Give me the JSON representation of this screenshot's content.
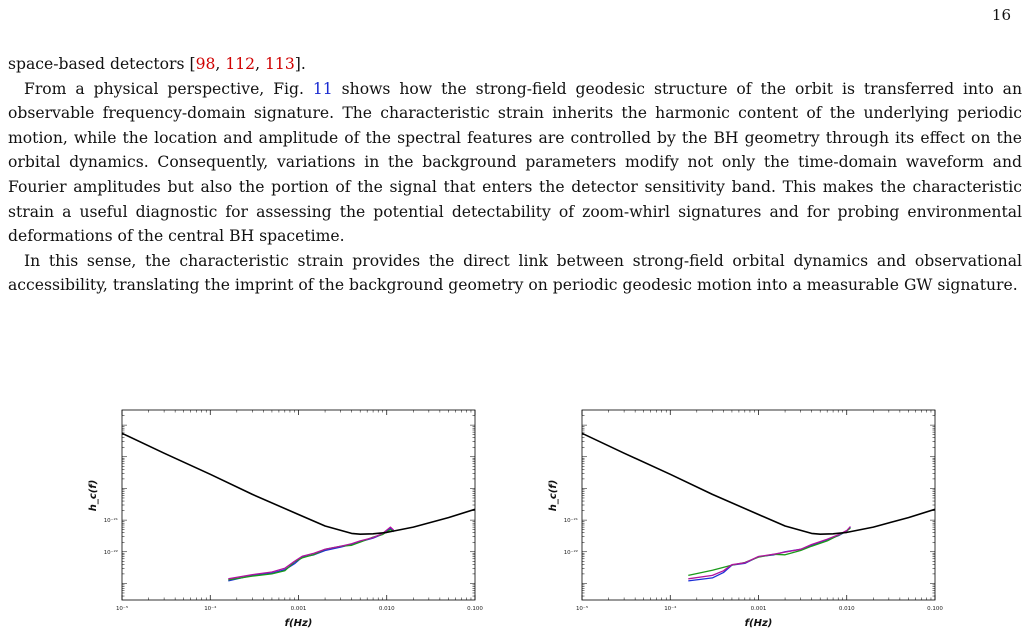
{
  "page_number": "16",
  "paragraphs": [
    {
      "segments": [
        {
          "t": "space-based detectors ["
        },
        {
          "t": "98",
          "kind": "ref"
        },
        {
          "t": ", "
        },
        {
          "t": "112",
          "kind": "ref"
        },
        {
          "t": ", "
        },
        {
          "t": "113",
          "kind": "ref"
        },
        {
          "t": "]."
        }
      ]
    },
    {
      "segments": [
        {
          "t": "From a physical perspective, Fig. "
        },
        {
          "t": "11",
          "kind": "figref"
        },
        {
          "t": " shows how the strong-field geodesic structure of the orbit is transferred into an observable frequency-domain signature. The characteristic strain inherits the harmonic content of the underlying periodic motion, while the location and amplitude of the spectral features are controlled by the BH geometry through its effect on the orbital dynamics. Consequently, variations in the background parameters modify not only the time-domain waveform and Fourier amplitudes but also the portion of the signal that enters the detector sensitivity band. This makes the characteristic strain a useful diagnostic for assessing the potential detectability of zoom-whirl signatures and for probing environmental deformations of the central BH spacetime."
        }
      ]
    },
    {
      "segments": [
        {
          "t": "In this sense, the characteristic strain provides the direct link between strong-field orbital dynamics and observational accessibility, translating the imprint of the background geometry on periodic geodesic motion into a measurable GW signature."
        }
      ]
    }
  ],
  "colors": {
    "ref": "#d00000",
    "figref": "#1a2bd0",
    "curve": "#000000",
    "series": [
      "#1b2fd6",
      "#1a9a1a",
      "#b0149e"
    ]
  },
  "chart_data": [
    {
      "type": "line",
      "title": "",
      "xlabel": "f(Hz)",
      "ylabel": "h_c(f)",
      "xscale": "log",
      "yscale": "log",
      "xlim": [
        1e-05,
        0.1
      ],
      "ylim": [
        3e-24,
        3e-18
      ],
      "xticks": [
        1e-05,
        0.0001,
        0.001,
        0.01,
        0.1
      ],
      "xtick_labels": [
        "10⁻⁵",
        "10⁻⁴",
        "0.001",
        "0.010",
        "0.100"
      ],
      "yticks": [
        1e-21,
        1e-22
      ],
      "ytick_labels": [
        "10⁻²¹",
        "10⁻²²"
      ],
      "sensitivity_curve": {
        "x": [
          1e-05,
          3e-05,
          0.0001,
          0.0003,
          0.001,
          0.002,
          0.004,
          0.005,
          0.007,
          0.01,
          0.02,
          0.05,
          0.1
        ],
        "y": [
          5.5e-19,
          1.3e-19,
          2.8e-20,
          6.5e-21,
          1.5e-21,
          6.5e-22,
          3.8e-22,
          3.6e-22,
          3.7e-22,
          4.1e-22,
          6e-22,
          1.2e-21,
          2.2e-21
        ]
      },
      "series": [
        {
          "color": "#1b2fd6",
          "x": [
            0.00016,
            0.0003,
            0.0005,
            0.0007,
            0.0009,
            0.0011,
            0.0015,
            0.002,
            0.003,
            0.004,
            0.005,
            0.007,
            0.009,
            0.011,
            0.012
          ],
          "y": [
            1.2e-23,
            1.8e-23,
            2.1e-23,
            2.7e-23,
            4.2e-23,
            6.8e-23,
            8e-23,
            1.1e-22,
            1.4e-22,
            1.7e-22,
            2.1e-22,
            2.7e-22,
            3.6e-22,
            5.5e-22,
            4.5e-22
          ]
        },
        {
          "color": "#1a9a1a",
          "x": [
            0.00016,
            0.0003,
            0.0005,
            0.0007,
            0.0009,
            0.0011,
            0.0015,
            0.002,
            0.003,
            0.004,
            0.005,
            0.007,
            0.009,
            0.011,
            0.012
          ],
          "y": [
            1.3e-23,
            1.7e-23,
            2e-23,
            2.5e-23,
            4.8e-23,
            6.4e-23,
            8.2e-23,
            1.2e-22,
            1.5e-22,
            1.6e-22,
            2e-22,
            2.9e-22,
            3.5e-22,
            5e-22,
            4.3e-22
          ]
        },
        {
          "color": "#b0149e",
          "x": [
            0.00016,
            0.0003,
            0.0005,
            0.0007,
            0.0009,
            0.0011,
            0.0015,
            0.002,
            0.003,
            0.004,
            0.005,
            0.007,
            0.009,
            0.011,
            0.012
          ],
          "y": [
            1.4e-23,
            1.9e-23,
            2.3e-23,
            3e-23,
            5e-23,
            7.2e-23,
            9e-23,
            1.2e-22,
            1.5e-22,
            1.8e-22,
            2.2e-22,
            2.8e-22,
            3.8e-22,
            6e-22,
            4.8e-22
          ]
        }
      ]
    },
    {
      "type": "line",
      "title": "",
      "xlabel": "f(Hz)",
      "ylabel": "h_c(f)",
      "xscale": "log",
      "yscale": "log",
      "xlim": [
        1e-05,
        0.1
      ],
      "ylim": [
        3e-24,
        3e-18
      ],
      "xticks": [
        1e-05,
        0.0001,
        0.001,
        0.01,
        0.1
      ],
      "xtick_labels": [
        "10⁻⁵",
        "10⁻⁴",
        "0.001",
        "0.010",
        "0.100"
      ],
      "yticks": [
        1e-21,
        1e-22
      ],
      "ytick_labels": [
        "10⁻²¹",
        "10⁻²²"
      ],
      "sensitivity_curve": {
        "x": [
          1e-05,
          3e-05,
          0.0001,
          0.0003,
          0.001,
          0.002,
          0.004,
          0.005,
          0.007,
          0.01,
          0.02,
          0.05,
          0.1
        ],
        "y": [
          5.5e-19,
          1.3e-19,
          2.8e-20,
          6.5e-21,
          1.5e-21,
          6.5e-22,
          3.8e-22,
          3.6e-22,
          3.7e-22,
          4.1e-22,
          6e-22,
          1.2e-21,
          2.2e-21
        ]
      },
      "series": [
        {
          "color": "#1b2fd6",
          "x": [
            0.00016,
            0.0003,
            0.0004,
            0.0005,
            0.0007,
            0.001,
            0.0015,
            0.002,
            0.003,
            0.004,
            0.006,
            0.008,
            0.01,
            0.011
          ],
          "y": [
            1.2e-23,
            1.5e-23,
            2.2e-23,
            3.8e-23,
            4.3e-23,
            7e-23,
            8e-23,
            1e-22,
            1.2e-22,
            1.6e-22,
            2.4e-22,
            3.2e-22,
            4.5e-22,
            6e-22
          ]
        },
        {
          "color": "#1a9a1a",
          "x": [
            0.00016,
            0.0003,
            0.0004,
            0.0005,
            0.0007,
            0.001,
            0.0015,
            0.002,
            0.003,
            0.004,
            0.006,
            0.008,
            0.01,
            0.011
          ],
          "y": [
            1.8e-23,
            2.6e-23,
            3.2e-23,
            3.8e-23,
            4.6e-23,
            6.8e-23,
            8.3e-23,
            8e-23,
            1.1e-22,
            1.5e-22,
            2.2e-22,
            3.3e-22,
            4.6e-22,
            5.6e-22
          ]
        },
        {
          "color": "#b0149e",
          "x": [
            0.00016,
            0.0003,
            0.0004,
            0.0005,
            0.0007,
            0.001,
            0.0015,
            0.002,
            0.003,
            0.004,
            0.006,
            0.008,
            0.01,
            0.011
          ],
          "y": [
            1.4e-23,
            1.8e-23,
            2.5e-23,
            3.9e-23,
            4.5e-23,
            7.1e-23,
            8.4e-23,
            9.8e-23,
            1.2e-22,
            1.7e-22,
            2.5e-22,
            3.4e-22,
            4.7e-22,
            6.3e-22
          ]
        }
      ]
    }
  ]
}
